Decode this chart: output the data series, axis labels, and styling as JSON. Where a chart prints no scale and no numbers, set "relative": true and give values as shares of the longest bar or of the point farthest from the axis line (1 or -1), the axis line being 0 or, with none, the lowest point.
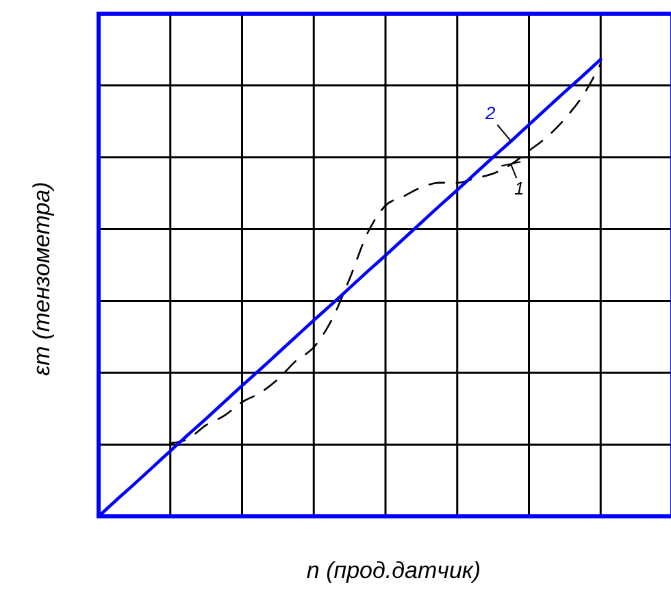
{
  "chart_data": {
    "type": "line",
    "xlabel": "n (прод.датчик)",
    "ylabel": "εт (тензометра)",
    "relative": true,
    "grid": true,
    "categories": [
      null,
      null,
      null,
      null,
      null,
      null,
      null,
      null,
      null,
      null,
      null,
      null,
      null,
      null,
      null,
      null,
      null,
      null,
      null,
      null,
      null,
      null,
      null,
      null,
      null,
      null,
      null,
      null,
      null,
      null,
      null,
      null,
      null
    ],
    "series": [
      {
        "name": "1",
        "color": "#000000",
        "line_style": "dashed",
        "values": [
          null,
          null,
          null,
          null,
          0.16,
          0.17,
          0.2,
          0.22,
          0.25,
          0.27,
          0.3,
          0.34,
          0.37,
          0.43,
          0.52,
          0.62,
          0.68,
          0.7,
          0.72,
          0.73,
          0.73,
          0.74,
          0.75,
          0.77,
          0.8,
          0.83,
          0.87,
          0.92,
          0.99,
          null,
          null,
          null,
          null
        ]
      },
      {
        "name": "2",
        "color": "#0000ff",
        "line_style": "solid",
        "values": [
          0,
          0.036,
          0.071,
          0.107,
          0.143,
          0.179,
          0.214,
          0.25,
          0.286,
          0.321,
          0.357,
          0.393,
          0.429,
          0.464,
          0.5,
          0.536,
          0.571,
          0.607,
          0.643,
          0.679,
          0.714,
          0.75,
          0.786,
          0.821,
          0.857,
          0.893,
          0.929,
          0.964,
          1,
          null,
          null,
          null,
          null
        ]
      }
    ]
  }
}
